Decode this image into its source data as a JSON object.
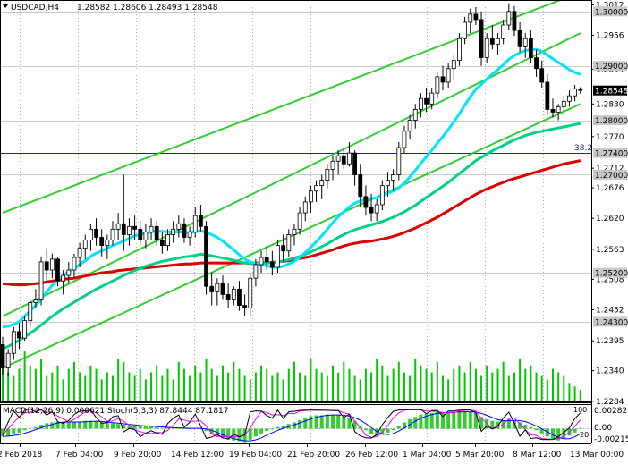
{
  "header": {
    "symbol": "USDCAD,H4",
    "quote": "1.28582 1.28606 1.28493 1.28548"
  },
  "indicator_header": {
    "text": "MACD(12,26,9) 0.000621 Stoch(5,3,3) 87.8444 87.1817"
  },
  "price_axis_ticks": [
    "1.3012",
    "1.2956",
    "1.2894",
    "1.2830",
    "1.2770",
    "1.2712",
    "1.2676",
    "1.2620",
    "1.2563",
    "1.2508",
    "1.2452",
    "1.2395",
    "1.2340",
    "1.2284"
  ],
  "level_labels": [
    "1.30000",
    "1.29000",
    "1.28000",
    "1.27400",
    "1.27000",
    "1.25200",
    "1.24300"
  ],
  "current_price_label": "1.28548",
  "marker_label": "38.2",
  "indicator_axis_ticks": [
    "0.002822",
    "0.00",
    "-0.002154"
  ],
  "indicator_side_labels": [
    "100",
    "20"
  ],
  "time_axis_labels": [
    "2 Feb 2018",
    "7 Feb 04:00",
    "9 Feb 20:00",
    "14 Feb 12:00",
    "19 Feb 04:00",
    "21 Feb 20:00",
    "26 Feb 12:00",
    "1 Mar 04:00",
    "5 Mar 20:00",
    "8 Mar 12:00",
    "13 Mar 00:00"
  ],
  "colors": {
    "bull": "#ffffff",
    "bear": "#000000",
    "channel": "#32cd32",
    "ma_fast": "#00e5ff",
    "ma_mid": "#00d088",
    "ma_slow": "#dd0000",
    "level_line": "#c8c8c8",
    "fibo_line": "#1c2a80",
    "volume": "#00c800",
    "macd_hist": "#33cc33",
    "macd_signal": "#0000ff",
    "stoch_k": "#000000",
    "stoch_d": "#ff00ff"
  },
  "chart_data": {
    "type": "candlestick",
    "symbol": "USDCAD",
    "timeframe": "H4",
    "ylim": [
      1.2282,
      1.3021
    ],
    "horizontal_levels": [
      1.3,
      1.29,
      1.28,
      1.274,
      1.27,
      1.252,
      1.243
    ],
    "fibo_level": 1.274,
    "last_price": 1.28548,
    "ohlc": [
      [
        1.2388,
        1.2402,
        1.2332,
        1.2345
      ],
      [
        1.2345,
        1.238,
        1.233,
        1.2372
      ],
      [
        1.2372,
        1.242,
        1.236,
        1.2412
      ],
      [
        1.2412,
        1.2428,
        1.238,
        1.24
      ],
      [
        1.24,
        1.244,
        1.2395,
        1.2432
      ],
      [
        1.2432,
        1.247,
        1.242,
        1.2465
      ],
      [
        1.2465,
        1.249,
        1.2455,
        1.247
      ],
      [
        1.247,
        1.255,
        1.246,
        1.254
      ],
      [
        1.254,
        1.2565,
        1.25,
        1.2525
      ],
      [
        1.2525,
        1.2555,
        1.251,
        1.2545
      ],
      [
        1.2545,
        1.2548,
        1.2495,
        1.2505
      ],
      [
        1.2505,
        1.2525,
        1.248,
        1.2515
      ],
      [
        1.2515,
        1.254,
        1.25,
        1.2525
      ],
      [
        1.2525,
        1.2555,
        1.251,
        1.2548
      ],
      [
        1.2548,
        1.2575,
        1.253,
        1.2565
      ],
      [
        1.2565,
        1.259,
        1.2545,
        1.258
      ],
      [
        1.258,
        1.261,
        1.256,
        1.26
      ],
      [
        1.26,
        1.262,
        1.257,
        1.2585
      ],
      [
        1.2585,
        1.26,
        1.255,
        1.257
      ],
      [
        1.257,
        1.259,
        1.2545,
        1.258
      ],
      [
        1.258,
        1.2615,
        1.257,
        1.26
      ],
      [
        1.26,
        1.263,
        1.258,
        1.261
      ],
      [
        1.261,
        1.27,
        1.256,
        1.259
      ],
      [
        1.259,
        1.262,
        1.257,
        1.2605
      ],
      [
        1.2605,
        1.2625,
        1.258,
        1.26
      ],
      [
        1.26,
        1.2615,
        1.257,
        1.258
      ],
      [
        1.258,
        1.261,
        1.2565,
        1.2595
      ],
      [
        1.2595,
        1.262,
        1.258,
        1.2605
      ],
      [
        1.2605,
        1.2615,
        1.257,
        1.258
      ],
      [
        1.258,
        1.2595,
        1.2555,
        1.257
      ],
      [
        1.257,
        1.26,
        1.256,
        1.259
      ],
      [
        1.259,
        1.2615,
        1.2575,
        1.26
      ],
      [
        1.26,
        1.2625,
        1.2585,
        1.261
      ],
      [
        1.261,
        1.262,
        1.2575,
        1.2585
      ],
      [
        1.2585,
        1.2605,
        1.257,
        1.2595
      ],
      [
        1.2595,
        1.264,
        1.2585,
        1.2625
      ],
      [
        1.2625,
        1.2645,
        1.2595,
        1.2605
      ],
      [
        1.2605,
        1.2615,
        1.248,
        1.2495
      ],
      [
        1.2495,
        1.252,
        1.246,
        1.2485
      ],
      [
        1.2485,
        1.251,
        1.246,
        1.25
      ],
      [
        1.25,
        1.2515,
        1.247,
        1.248
      ],
      [
        1.248,
        1.25,
        1.2455,
        1.247
      ],
      [
        1.247,
        1.2495,
        1.246,
        1.249
      ],
      [
        1.249,
        1.2505,
        1.245,
        1.246
      ],
      [
        1.246,
        1.248,
        1.244,
        1.2455
      ],
      [
        1.2455,
        1.252,
        1.244,
        1.251
      ],
      [
        1.251,
        1.2545,
        1.2495,
        1.2535
      ],
      [
        1.2535,
        1.256,
        1.252,
        1.2548
      ],
      [
        1.2548,
        1.257,
        1.2525,
        1.254
      ],
      [
        1.254,
        1.256,
        1.2515,
        1.253
      ],
      [
        1.253,
        1.258,
        1.252,
        1.257
      ],
      [
        1.257,
        1.259,
        1.254,
        1.256
      ],
      [
        1.256,
        1.26,
        1.255,
        1.259
      ],
      [
        1.259,
        1.261,
        1.257,
        1.26
      ],
      [
        1.26,
        1.264,
        1.259,
        1.263
      ],
      [
        1.263,
        1.266,
        1.2615,
        1.265
      ],
      [
        1.265,
        1.268,
        1.263,
        1.267
      ],
      [
        1.267,
        1.269,
        1.265,
        1.268
      ],
      [
        1.268,
        1.27,
        1.2655,
        1.269
      ],
      [
        1.269,
        1.272,
        1.2675,
        1.271
      ],
      [
        1.271,
        1.2735,
        1.269,
        1.2725
      ],
      [
        1.2725,
        1.2745,
        1.27,
        1.2735
      ],
      [
        1.2735,
        1.2748,
        1.271,
        1.272
      ],
      [
        1.272,
        1.276,
        1.2715,
        1.274
      ],
      [
        1.274,
        1.2745,
        1.268,
        1.27
      ],
      [
        1.27,
        1.272,
        1.264,
        1.266
      ],
      [
        1.266,
        1.268,
        1.2625,
        1.264
      ],
      [
        1.264,
        1.2665,
        1.2615,
        1.263
      ],
      [
        1.263,
        1.2655,
        1.2615,
        1.2645
      ],
      [
        1.2645,
        1.269,
        1.2635,
        1.268
      ],
      [
        1.268,
        1.2705,
        1.266,
        1.269
      ],
      [
        1.269,
        1.271,
        1.267,
        1.27
      ],
      [
        1.27,
        1.276,
        1.269,
        1.275
      ],
      [
        1.275,
        1.279,
        1.274,
        1.278
      ],
      [
        1.278,
        1.281,
        1.2765,
        1.28
      ],
      [
        1.28,
        1.283,
        1.2785,
        1.282
      ],
      [
        1.282,
        1.285,
        1.2805,
        1.284
      ],
      [
        1.284,
        1.286,
        1.2815,
        1.283
      ],
      [
        1.283,
        1.286,
        1.282,
        1.285
      ],
      [
        1.285,
        1.289,
        1.284,
        1.288
      ],
      [
        1.288,
        1.29,
        1.2855,
        1.287
      ],
      [
        1.287,
        1.2905,
        1.286,
        1.2895
      ],
      [
        1.2895,
        1.292,
        1.2875,
        1.291
      ],
      [
        1.291,
        1.296,
        1.29,
        1.295
      ],
      [
        1.295,
        1.299,
        1.294,
        1.298
      ],
      [
        1.298,
        1.3005,
        1.296,
        1.2995
      ],
      [
        1.2995,
        1.3008,
        1.2975,
        1.2985
      ],
      [
        1.2985,
        1.3,
        1.29,
        1.2915
      ],
      [
        1.2915,
        1.296,
        1.2905,
        1.295
      ],
      [
        1.295,
        1.2975,
        1.293,
        1.294
      ],
      [
        1.294,
        1.296,
        1.292,
        1.295
      ],
      [
        1.295,
        1.2985,
        1.294,
        1.2975
      ],
      [
        1.2975,
        1.3015,
        1.2965,
        1.3
      ],
      [
        1.3,
        1.301,
        1.2955,
        1.2965
      ],
      [
        1.2965,
        1.298,
        1.2925,
        1.2935
      ],
      [
        1.2935,
        1.296,
        1.2915,
        1.295
      ],
      [
        1.295,
        1.2965,
        1.2905,
        1.2915
      ],
      [
        1.2915,
        1.293,
        1.288,
        1.2895
      ],
      [
        1.2895,
        1.291,
        1.286,
        1.287
      ],
      [
        1.287,
        1.2885,
        1.281,
        1.282
      ],
      [
        1.282,
        1.284,
        1.2805,
        1.2815
      ],
      [
        1.2815,
        1.283,
        1.28,
        1.2825
      ],
      [
        1.2825,
        1.2845,
        1.2815,
        1.2835
      ],
      [
        1.2835,
        1.2855,
        1.2825,
        1.2845
      ],
      [
        1.2845,
        1.2865,
        1.2835,
        1.2858
      ],
      [
        1.2858,
        1.2861,
        1.2849,
        1.2855
      ]
    ],
    "volume": [
      55,
      40,
      35,
      45,
      70,
      50,
      45,
      60,
      35,
      40,
      50,
      30,
      45,
      55,
      40,
      35,
      50,
      45,
      30,
      40,
      35,
      60,
      55,
      40,
      35,
      45,
      30,
      40,
      50,
      35,
      45,
      30,
      55,
      45,
      35,
      50,
      40,
      60,
      45,
      35,
      50,
      40,
      55,
      45,
      35,
      30,
      40,
      50,
      45,
      35,
      40,
      30,
      45,
      55,
      40,
      35,
      60,
      45,
      40,
      35,
      50,
      40,
      55,
      45,
      35,
      30,
      45,
      40,
      60,
      50,
      35,
      45,
      55,
      40,
      35,
      60,
      50,
      45,
      40,
      55,
      35,
      30,
      45,
      50,
      40,
      55,
      45,
      35,
      50,
      40,
      45,
      55,
      35,
      40,
      60,
      45,
      50,
      40,
      35,
      30,
      45,
      40,
      35,
      25,
      20,
      15
    ],
    "ma_fast": [
      1.242,
      1.2422,
      1.2425,
      1.243,
      1.244,
      1.245,
      1.246,
      1.2472,
      1.2485,
      1.2497,
      1.2507,
      1.2515,
      1.2522,
      1.2528,
      1.2535,
      1.2542,
      1.255,
      1.2556,
      1.256,
      1.2565,
      1.257,
      1.2574,
      1.2578,
      1.2583,
      1.2588,
      1.259,
      1.2593,
      1.2595,
      1.2596,
      1.2596,
      1.2595,
      1.2595,
      1.2595,
      1.2594,
      1.2594,
      1.2595,
      1.2597,
      1.2594,
      1.259,
      1.2585,
      1.2578,
      1.257,
      1.2562,
      1.2553,
      1.2545,
      1.254,
      1.2537,
      1.2535,
      1.2533,
      1.253,
      1.253,
      1.2532,
      1.2536,
      1.2541,
      1.2548,
      1.2557,
      1.2567,
      1.2577,
      1.2588,
      1.26,
      1.2612,
      1.2623,
      1.2632,
      1.2641,
      1.2648,
      1.2652,
      1.2654,
      1.2656,
      1.2658,
      1.2662,
      1.2666,
      1.267,
      1.2676,
      1.2685,
      1.2696,
      1.2708,
      1.2721,
      1.2733,
      1.2745,
      1.2758,
      1.277,
      1.2783,
      1.2797,
      1.2812,
      1.2828,
      1.2843,
      1.2857,
      1.2866,
      1.2876,
      1.2885,
      1.2893,
      1.2902,
      1.2912,
      1.2919,
      1.2924,
      1.2928,
      1.293,
      1.293,
      1.2927,
      1.292,
      1.2913,
      1.2906,
      1.29,
      1.2893,
      1.2888,
      1.2884
    ],
    "ma_mid": [
      1.238,
      1.2385,
      1.239,
      1.2396,
      1.2402,
      1.2409,
      1.2416,
      1.2424,
      1.2432,
      1.244,
      1.2447,
      1.2454,
      1.246,
      1.2466,
      1.2472,
      1.2478,
      1.2484,
      1.249,
      1.2495,
      1.25,
      1.2505,
      1.251,
      1.2515,
      1.252,
      1.2524,
      1.2528,
      1.2532,
      1.2535,
      1.2538,
      1.2541,
      1.2543,
      1.2545,
      1.2547,
      1.2549,
      1.255,
      1.2552,
      1.2554,
      1.2553,
      1.2551,
      1.2549,
      1.2547,
      1.2545,
      1.2543,
      1.254,
      1.2538,
      1.2537,
      1.2537,
      1.2537,
      1.2538,
      1.2539,
      1.254,
      1.2542,
      1.2544,
      1.2547,
      1.255,
      1.2554,
      1.2558,
      1.2563,
      1.2568,
      1.2573,
      1.2579,
      1.2585,
      1.259,
      1.2595,
      1.2599,
      1.2602,
      1.2605,
      1.2608,
      1.2611,
      1.2614,
      1.2618,
      1.2622,
      1.2627,
      1.2632,
      1.2638,
      1.2644,
      1.2651,
      1.2658,
      1.2665,
      1.2672,
      1.2679,
      1.2686,
      1.2694,
      1.2702,
      1.271,
      1.2718,
      1.2726,
      1.2732,
      1.2738,
      1.2744,
      1.2749,
      1.2754,
      1.2759,
      1.2764,
      1.2768,
      1.2772,
      1.2775,
      1.2778,
      1.278,
      1.2782,
      1.2784,
      1.2786,
      1.2788,
      1.279,
      1.2792,
      1.2794
    ],
    "ma_slow": [
      1.25,
      1.2499,
      1.2498,
      1.2498,
      1.2498,
      1.2499,
      1.25,
      1.2501,
      1.2503,
      1.2505,
      1.2506,
      1.2508,
      1.2509,
      1.251,
      1.2512,
      1.2514,
      1.2516,
      1.2518,
      1.252,
      1.2521,
      1.2522,
      1.2524,
      1.2525,
      1.2526,
      1.2527,
      1.2528,
      1.2529,
      1.253,
      1.2531,
      1.2532,
      1.2533,
      1.2534,
      1.2535,
      1.2536,
      1.2536,
      1.2537,
      1.2538,
      1.2538,
      1.2538,
      1.2538,
      1.2538,
      1.2538,
      1.2538,
      1.2538,
      1.2538,
      1.2538,
      1.2538,
      1.2538,
      1.2538,
      1.2539,
      1.254,
      1.2541,
      1.2542,
      1.2544,
      1.2546,
      1.2548,
      1.255,
      1.2553,
      1.2556,
      1.2559,
      1.2562,
      1.2566,
      1.2569,
      1.2572,
      1.2574,
      1.2576,
      1.2577,
      1.2578,
      1.258,
      1.2582,
      1.2584,
      1.2587,
      1.259,
      1.2594,
      1.2598,
      1.2602,
      1.2607,
      1.2612,
      1.2617,
      1.2622,
      1.2628,
      1.2634,
      1.264,
      1.2646,
      1.2652,
      1.2658,
      1.2664,
      1.2669,
      1.2674,
      1.2678,
      1.2682,
      1.2686,
      1.269,
      1.2693,
      1.2696,
      1.2699,
      1.2702,
      1.2705,
      1.2708,
      1.2711,
      1.2714,
      1.2717,
      1.272,
      1.2722,
      1.2724,
      1.2726
    ],
    "channel_lines": [
      {
        "points": [
          [
            0,
            1.263
          ],
          [
            105,
            1.3035
          ]
        ]
      },
      {
        "points": [
          [
            0,
            1.244
          ],
          [
            105,
            1.296
          ]
        ]
      },
      {
        "points": [
          [
            0,
            1.2345
          ],
          [
            105,
            1.283
          ]
        ]
      }
    ],
    "macd_hist": [
      -0.001,
      -0.0009,
      -0.0007,
      -0.0005,
      -0.0002,
      0.0,
      0.0002,
      0.0005,
      0.0007,
      0.0008,
      0.0009,
      0.0009,
      0.0008,
      0.0008,
      0.0009,
      0.001,
      0.001,
      0.0009,
      0.0008,
      0.0007,
      0.0007,
      0.0006,
      0.0005,
      0.0004,
      0.0004,
      0.0003,
      0.0003,
      0.0003,
      0.0002,
      0.0001,
      0.0001,
      0.0001,
      0.0001,
      0.0,
      0.0,
      0.0001,
      0.0001,
      -0.0003,
      -0.0007,
      -0.001,
      -0.0012,
      -0.0014,
      -0.0015,
      -0.0016,
      -0.0017,
      -0.0014,
      -0.001,
      -0.0006,
      -0.0003,
      -0.0001,
      0.0002,
      0.0004,
      0.0006,
      0.0008,
      0.0011,
      0.0014,
      0.0016,
      0.0017,
      0.0017,
      0.0018,
      0.0018,
      0.0017,
      0.0015,
      0.0014,
      0.001,
      0.0004,
      -0.0002,
      -0.0007,
      -0.001,
      -0.0008,
      -0.0005,
      -0.0002,
      0.0003,
      0.0008,
      0.0012,
      0.0015,
      0.0018,
      0.0019,
      0.002,
      0.0021,
      0.0021,
      0.0021,
      0.0021,
      0.0022,
      0.0022,
      0.0021,
      0.002,
      0.0015,
      0.0012,
      0.001,
      0.0009,
      0.001,
      0.0012,
      0.0011,
      0.0008,
      0.0005,
      0.0002,
      -0.0002,
      -0.0006,
      -0.001,
      -0.0014,
      -0.0015,
      -0.0013,
      -0.0009,
      -0.0005,
      0.0001
    ]
  }
}
